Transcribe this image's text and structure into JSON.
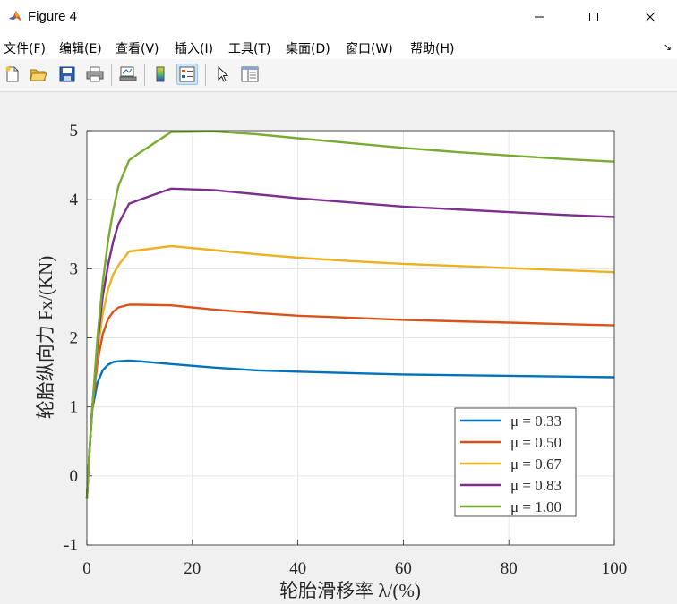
{
  "window": {
    "title": "Figure 4",
    "controls": [
      "minimize",
      "maximize",
      "close"
    ]
  },
  "menu": {
    "items": [
      "文件(F)",
      "编辑(E)",
      "查看(V)",
      "插入(I)",
      "工具(T)",
      "桌面(D)",
      "窗口(W)",
      "帮助(H)"
    ],
    "dock_glyph": "↘"
  },
  "toolbar": {
    "buttons": [
      "new-figure-icon",
      "open-file-icon",
      "save-icon",
      "print-icon",
      "link-plot-icon",
      "colorbar-icon",
      "legend-icon",
      "pointer-icon",
      "property-editor-icon"
    ],
    "active": "legend-icon"
  },
  "chart_data": {
    "type": "line",
    "title": "",
    "xlabel": "轮胎滑移率 λ/(%)",
    "ylabel": "轮胎纵向力 Fx/(KN)",
    "xlim": [
      0,
      100
    ],
    "ylim": [
      -1,
      5
    ],
    "xticks": [
      0,
      20,
      40,
      60,
      80,
      100
    ],
    "yticks": [
      -1,
      0,
      1,
      2,
      3,
      4,
      5
    ],
    "grid": true,
    "legend_position": "bottom-right",
    "series": [
      {
        "name": "μ = 0.33",
        "color": "#0072BD",
        "x": [
          0,
          0.5,
          1,
          2,
          3,
          4,
          5,
          6,
          8,
          10,
          16,
          24,
          32,
          40,
          50,
          60,
          70,
          80,
          90,
          100
        ],
        "y": [
          -0.33,
          0.35,
          0.95,
          1.35,
          1.53,
          1.61,
          1.65,
          1.66,
          1.67,
          1.66,
          1.62,
          1.57,
          1.53,
          1.51,
          1.49,
          1.47,
          1.46,
          1.45,
          1.44,
          1.43
        ]
      },
      {
        "name": "μ = 0.50",
        "color": "#D95319",
        "x": [
          0,
          0.5,
          1,
          2,
          3,
          4,
          5,
          6,
          8,
          10,
          16,
          24,
          32,
          40,
          50,
          60,
          70,
          80,
          90,
          100
        ],
        "y": [
          -0.33,
          0.35,
          0.95,
          1.65,
          2.05,
          2.27,
          2.38,
          2.44,
          2.48,
          2.48,
          2.47,
          2.41,
          2.36,
          2.32,
          2.29,
          2.26,
          2.24,
          2.22,
          2.2,
          2.18
        ]
      },
      {
        "name": "μ = 0.67",
        "color": "#EDB120",
        "x": [
          0,
          0.5,
          1,
          2,
          3,
          4,
          5,
          6,
          8,
          10,
          16,
          24,
          32,
          40,
          50,
          60,
          70,
          80,
          90,
          100
        ],
        "y": [
          -0.33,
          0.35,
          0.95,
          1.8,
          2.35,
          2.7,
          2.92,
          3.05,
          3.25,
          3.27,
          3.33,
          3.27,
          3.21,
          3.16,
          3.11,
          3.07,
          3.04,
          3.01,
          2.98,
          2.95
        ]
      },
      {
        "name": "μ = 0.83",
        "color": "#7E2F8E",
        "x": [
          0,
          0.5,
          1,
          2,
          3,
          4,
          5,
          6,
          8,
          10,
          16,
          24,
          32,
          40,
          50,
          60,
          70,
          80,
          90,
          100
        ],
        "y": [
          -0.33,
          0.35,
          0.95,
          1.9,
          2.6,
          3.05,
          3.4,
          3.65,
          3.94,
          4.0,
          4.16,
          4.14,
          4.08,
          4.02,
          3.96,
          3.9,
          3.86,
          3.82,
          3.78,
          3.75
        ]
      },
      {
        "name": "μ = 1.00",
        "color": "#77AC30",
        "x": [
          0,
          0.5,
          1,
          2,
          3,
          4,
          5,
          6,
          8,
          10,
          16,
          24,
          32,
          40,
          50,
          60,
          70,
          80,
          90,
          100
        ],
        "y": [
          -0.33,
          0.35,
          0.95,
          2.0,
          2.8,
          3.4,
          3.85,
          4.2,
          4.57,
          4.68,
          4.98,
          4.99,
          4.95,
          4.89,
          4.82,
          4.75,
          4.69,
          4.64,
          4.59,
          4.55
        ]
      }
    ]
  }
}
